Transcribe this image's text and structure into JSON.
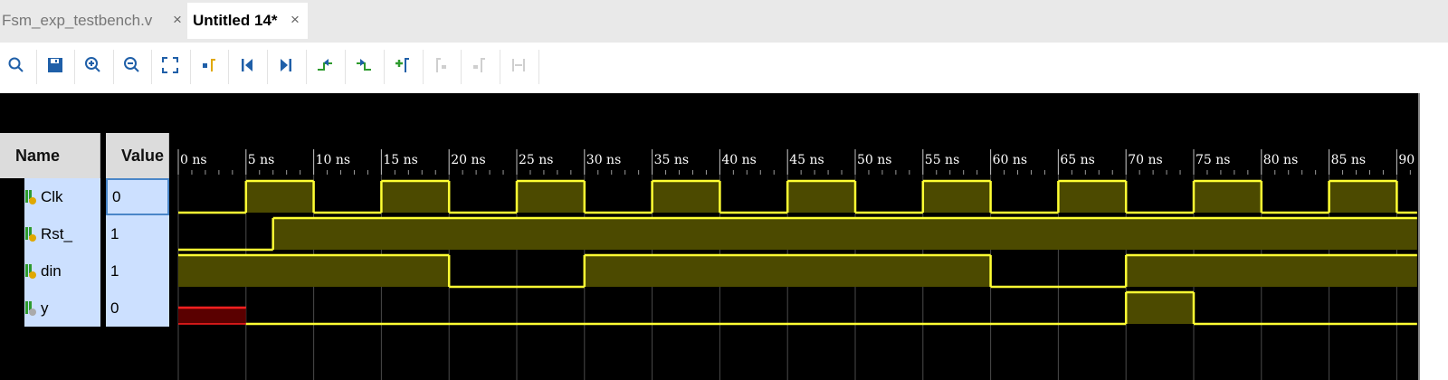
{
  "tabs": [
    {
      "title": "Fsm_exp_testbench.v",
      "close": "×",
      "active": false
    },
    {
      "title": "Untitled 14*",
      "close": "×",
      "active": true
    }
  ],
  "toolbar": [
    {
      "icon": "search-icon",
      "enabled": true
    },
    {
      "icon": "save-icon",
      "enabled": true
    },
    {
      "icon": "zoom-in-icon",
      "enabled": true
    },
    {
      "icon": "zoom-out-icon",
      "enabled": true
    },
    {
      "icon": "zoom-fit-icon",
      "enabled": true
    },
    {
      "icon": "go-to-cursor-icon",
      "enabled": true
    },
    {
      "icon": "go-to-time-zero-icon",
      "enabled": true
    },
    {
      "icon": "go-to-last-time-icon",
      "enabled": true
    },
    {
      "icon": "previous-transition-icon",
      "enabled": true
    },
    {
      "icon": "next-transition-icon",
      "enabled": true
    },
    {
      "icon": "add-marker-icon",
      "enabled": true
    },
    {
      "icon": "previous-marker-icon",
      "enabled": false
    },
    {
      "icon": "next-marker-icon",
      "enabled": false
    },
    {
      "icon": "swap-cursors-icon",
      "enabled": false
    }
  ],
  "columns": {
    "name": "Name",
    "value": "Value"
  },
  "signals": [
    {
      "name": "Clk",
      "value": "0",
      "selected": true
    },
    {
      "name": "Rst_",
      "value": "1",
      "selected": false
    },
    {
      "name": "din",
      "value": "1",
      "selected": false
    },
    {
      "name": "y",
      "value": "0",
      "selected": false
    }
  ],
  "timeline": {
    "unit": "ns",
    "labels": [
      "0 ns",
      "5 ns",
      "10 ns",
      "15 ns",
      "20 ns",
      "25 ns",
      "30 ns",
      "35 ns",
      "40 ns",
      "45 ns",
      "50 ns",
      "55 ns",
      "60 ns",
      "65 ns",
      "70 ns",
      "75 ns",
      "80 ns",
      "85 ns",
      "90"
    ]
  },
  "waveforms": [
    {
      "signal": "Clk",
      "segments": [
        [
          0,
          5,
          0
        ],
        [
          5,
          10,
          1
        ],
        [
          10,
          15,
          0
        ],
        [
          15,
          20,
          1
        ],
        [
          20,
          25,
          0
        ],
        [
          25,
          30,
          1
        ],
        [
          30,
          35,
          0
        ],
        [
          35,
          40,
          1
        ],
        [
          40,
          45,
          0
        ],
        [
          45,
          50,
          1
        ],
        [
          50,
          55,
          0
        ],
        [
          55,
          60,
          1
        ],
        [
          60,
          65,
          0
        ],
        [
          65,
          70,
          1
        ],
        [
          70,
          75,
          0
        ],
        [
          75,
          80,
          1
        ],
        [
          80,
          85,
          0
        ],
        [
          85,
          90,
          1
        ],
        [
          90,
          91.5,
          0
        ]
      ]
    },
    {
      "signal": "Rst_",
      "segments": [
        [
          0,
          7,
          0
        ],
        [
          7,
          91.5,
          1
        ]
      ]
    },
    {
      "signal": "din",
      "segments": [
        [
          0,
          20,
          1
        ],
        [
          20,
          30,
          0
        ],
        [
          30,
          60,
          1
        ],
        [
          60,
          70,
          0
        ],
        [
          70,
          91.5,
          1
        ]
      ]
    },
    {
      "signal": "y",
      "segments": [
        [
          0,
          5,
          "X"
        ],
        [
          5,
          70,
          0
        ],
        [
          70,
          75,
          1
        ],
        [
          75,
          91.5,
          0
        ]
      ]
    }
  ],
  "colors": {
    "wave_line": "#ffff33",
    "wave_fill_high": "#4c4a00",
    "wave_unknown": "#ff2020",
    "wave_unknown_fill": "#5a0000",
    "grid": "#4a4a4a",
    "selected_row": "#cce0ff",
    "icon_blue": "#1f5fa8",
    "icon_green": "#2e9a2e"
  }
}
